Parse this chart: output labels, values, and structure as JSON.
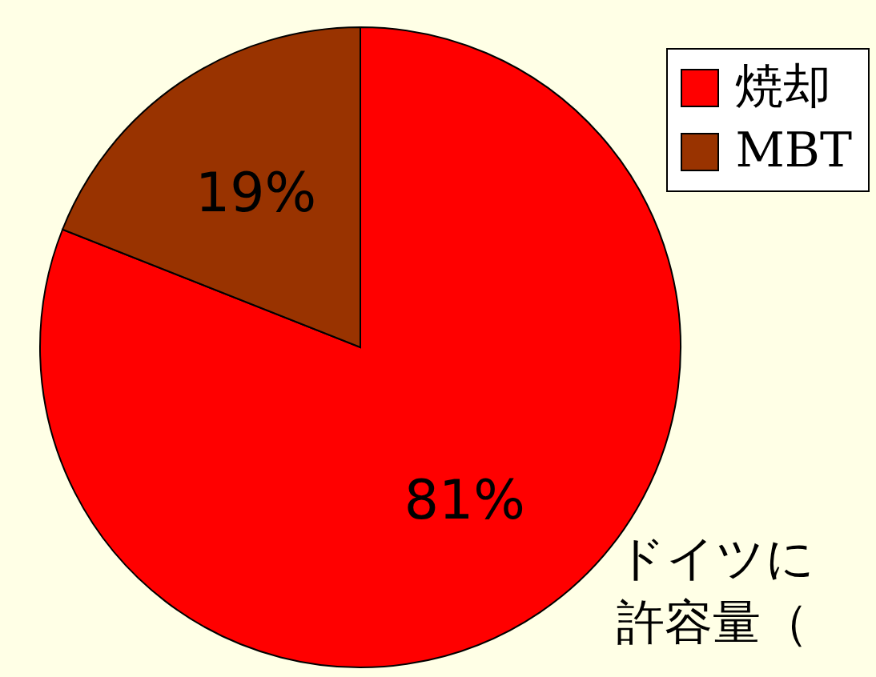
{
  "chart_data": {
    "type": "pie",
    "categories": [
      "焼却",
      "MBT"
    ],
    "values": [
      81,
      19
    ],
    "colors": [
      "#ff0000",
      "#993300"
    ],
    "value_labels": [
      "81%",
      "19%"
    ],
    "legend": "top right",
    "annotations": [
      "ドイツに",
      "許容量（"
    ]
  }
}
